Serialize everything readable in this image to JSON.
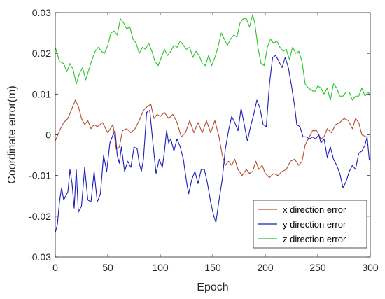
{
  "chart_data": {
    "type": "line",
    "xlabel": "Epoch",
    "ylabel": "Coordinate error(m)",
    "xlim": [
      0,
      300
    ],
    "ylim": [
      -0.03,
      0.03
    ],
    "xticks": [
      0,
      50,
      100,
      150,
      200,
      250,
      300
    ],
    "yticks": [
      -0.03,
      -0.02,
      -0.01,
      0,
      0.01,
      0.02,
      0.03
    ],
    "xtick_labels": [
      "0",
      "50",
      "100",
      "150",
      "200",
      "250",
      "300"
    ],
    "ytick_labels": [
      "-0.03",
      "-0.02",
      "-0.01",
      "0",
      "0.01",
      "0.02",
      "0.03"
    ],
    "grid": false,
    "legend_position": "bottom-right",
    "series": [
      {
        "name": "x direction error",
        "color": "#b34b2e",
        "points": [
          [
            0,
            -0.0015
          ],
          [
            4,
            0.001
          ],
          [
            8,
            0.003
          ],
          [
            12,
            0.004
          ],
          [
            16,
            0.0065
          ],
          [
            19,
            0.0085
          ],
          [
            22,
            0.007
          ],
          [
            25,
            0.004
          ],
          [
            28,
            0.0025
          ],
          [
            31,
            0.0035
          ],
          [
            34,
            0.0015
          ],
          [
            37,
            0.0025
          ],
          [
            40,
            0.002
          ],
          [
            45,
            0.003
          ],
          [
            50,
            0.0005
          ],
          [
            55,
            0.0025
          ],
          [
            58,
            -0.0035
          ],
          [
            61,
            -0.003
          ],
          [
            64,
            0.001
          ],
          [
            68,
            0.0015
          ],
          [
            72,
            0.0005
          ],
          [
            76,
            0.0015
          ],
          [
            80,
            0.0035
          ],
          [
            84,
            0.006
          ],
          [
            88,
            0.007
          ],
          [
            91,
            0.0075
          ],
          [
            94,
            0.004
          ],
          [
            97,
            0.005
          ],
          [
            100,
            0.0045
          ],
          [
            104,
            0.0055
          ],
          [
            108,
            0.004
          ],
          [
            112,
            0.005
          ],
          [
            116,
            0.003
          ],
          [
            120,
            -0.0005
          ],
          [
            124,
            0.0005
          ],
          [
            128,
            0.0035
          ],
          [
            132,
            0.0005
          ],
          [
            136,
            0.003
          ],
          [
            140,
            0.0005
          ],
          [
            144,
            0.0035
          ],
          [
            148,
            0.0005
          ],
          [
            152,
            0.0035
          ],
          [
            156,
            -0.0005
          ],
          [
            159,
            -0.005
          ],
          [
            162,
            -0.0075
          ],
          [
            165,
            -0.0065
          ],
          [
            168,
            -0.0075
          ],
          [
            171,
            -0.006
          ],
          [
            174,
            -0.0085
          ],
          [
            178,
            -0.01
          ],
          [
            182,
            -0.0085
          ],
          [
            185,
            -0.0095
          ],
          [
            188,
            -0.009
          ],
          [
            191,
            -0.0065
          ],
          [
            194,
            -0.0085
          ],
          [
            197,
            -0.0075
          ],
          [
            200,
            -0.0095
          ],
          [
            204,
            -0.0105
          ],
          [
            208,
            -0.0095
          ],
          [
            212,
            -0.01
          ],
          [
            216,
            -0.009
          ],
          [
            220,
            -0.0085
          ],
          [
            224,
            -0.0065
          ],
          [
            228,
            -0.006
          ],
          [
            232,
            -0.0075
          ],
          [
            235,
            -0.0065
          ],
          [
            238,
            -0.0025
          ],
          [
            241,
            -0.001
          ],
          [
            245,
            0.001
          ],
          [
            249,
            0.001
          ],
          [
            253,
            -0.001
          ],
          [
            256,
            -0.0005
          ],
          [
            259,
            0.0015
          ],
          [
            263,
            0.0005
          ],
          [
            267,
            0.0025
          ],
          [
            271,
            0.003
          ],
          [
            275,
            0.004
          ],
          [
            279,
            0.0035
          ],
          [
            283,
            0.0015
          ],
          [
            286,
            0.004
          ],
          [
            289,
            0.003
          ],
          [
            292,
            0.0
          ],
          [
            296,
            -0.0005
          ],
          [
            300,
            -0.0005
          ]
        ]
      },
      {
        "name": "y direction error",
        "color": "#1c1cba",
        "points": [
          [
            0,
            -0.024
          ],
          [
            2,
            -0.022
          ],
          [
            4,
            -0.0165
          ],
          [
            6,
            -0.013
          ],
          [
            8,
            -0.016
          ],
          [
            10,
            -0.015
          ],
          [
            12,
            -0.014
          ],
          [
            14,
            -0.0085
          ],
          [
            16,
            -0.012
          ],
          [
            18,
            -0.018
          ],
          [
            20,
            -0.0085
          ],
          [
            22,
            -0.019
          ],
          [
            25,
            -0.0175
          ],
          [
            28,
            -0.008
          ],
          [
            31,
            -0.016
          ],
          [
            34,
            -0.0165
          ],
          [
            37,
            -0.009
          ],
          [
            40,
            -0.0165
          ],
          [
            43,
            -0.0145
          ],
          [
            46,
            -0.005
          ],
          [
            49,
            -0.009
          ],
          [
            52,
            -0.002
          ],
          [
            55,
            0.0
          ],
          [
            57,
            0.001
          ],
          [
            59,
            -0.005
          ],
          [
            61,
            -0.007
          ],
          [
            63,
            -0.003
          ],
          [
            66,
            -0.009
          ],
          [
            69,
            -0.0065
          ],
          [
            72,
            -0.008
          ],
          [
            75,
            -0.003
          ],
          [
            78,
            -0.0035
          ],
          [
            80,
            -0.007
          ],
          [
            82,
            -0.009
          ],
          [
            84,
            -0.006
          ],
          [
            87,
            0.0055
          ],
          [
            90,
            0.006
          ],
          [
            93,
            -0.002
          ],
          [
            96,
            -0.0095
          ],
          [
            99,
            -0.006
          ],
          [
            102,
            -0.008
          ],
          [
            104,
            -0.004
          ],
          [
            106,
            0.001
          ],
          [
            108,
            -0.002
          ],
          [
            110,
            -0.001
          ],
          [
            113,
            -0.004
          ],
          [
            116,
            -0.001
          ],
          [
            119,
            -0.003
          ],
          [
            122,
            -0.006
          ],
          [
            125,
            -0.0115
          ],
          [
            127,
            -0.0145
          ],
          [
            130,
            -0.011
          ],
          [
            133,
            -0.009
          ],
          [
            136,
            -0.012
          ],
          [
            139,
            -0.0085
          ],
          [
            142,
            -0.0085
          ],
          [
            145,
            -0.012
          ],
          [
            148,
            -0.0165
          ],
          [
            151,
            -0.02
          ],
          [
            153,
            -0.0215
          ],
          [
            156,
            -0.016
          ],
          [
            159,
            -0.011
          ],
          [
            162,
            -0.0035
          ],
          [
            165,
            0.001
          ],
          [
            168,
            0.0045
          ],
          [
            171,
            0.003
          ],
          [
            174,
            0.001
          ],
          [
            177,
            0.0065
          ],
          [
            180,
            0.0025
          ],
          [
            183,
            -0.0015
          ],
          [
            186,
            0.002
          ],
          [
            189,
            0.005
          ],
          [
            192,
            0.0085
          ],
          [
            195,
            0.0065
          ],
          [
            198,
            0.0025
          ],
          [
            201,
            0.002
          ],
          [
            204,
            0.0125
          ],
          [
            207,
            0.019
          ],
          [
            210,
            0.0195
          ],
          [
            213,
            0.018
          ],
          [
            216,
            0.0165
          ],
          [
            219,
            0.019
          ],
          [
            222,
            0.0165
          ],
          [
            225,
            0.012
          ],
          [
            228,
            0.007
          ],
          [
            230,
            0.0025
          ],
          [
            233,
            0.002
          ],
          [
            236,
            -0.0005
          ],
          [
            239,
            -0.0005
          ],
          [
            242,
            -0.001
          ],
          [
            245,
            -0.0005
          ],
          [
            248,
            -0.001
          ],
          [
            251,
            -0.0
          ],
          [
            253,
            -0.002
          ],
          [
            256,
            -0.001
          ],
          [
            259,
            -0.0055
          ],
          [
            262,
            -0.003
          ],
          [
            265,
            -0.006
          ],
          [
            268,
            -0.0075
          ],
          [
            271,
            -0.0095
          ],
          [
            274,
            -0.013
          ],
          [
            277,
            -0.0115
          ],
          [
            280,
            -0.009
          ],
          [
            283,
            -0.0075
          ],
          [
            286,
            -0.0085
          ],
          [
            289,
            -0.0045
          ],
          [
            292,
            -0.004
          ],
          [
            295,
            -0.0025
          ],
          [
            297,
            -0.0005
          ],
          [
            299,
            -0.006
          ],
          [
            300,
            -0.0065
          ]
        ]
      },
      {
        "name": "z direction error",
        "color": "#27c42a",
        "points": [
          [
            0,
            0.0215
          ],
          [
            4,
            0.018
          ],
          [
            8,
            0.0175
          ],
          [
            11,
            0.0155
          ],
          [
            14,
            0.0175
          ],
          [
            17,
            0.016
          ],
          [
            20,
            0.0125
          ],
          [
            23,
            0.015
          ],
          [
            26,
            0.0165
          ],
          [
            29,
            0.0135
          ],
          [
            32,
            0.016
          ],
          [
            35,
            0.0185
          ],
          [
            38,
            0.0205
          ],
          [
            41,
            0.0215
          ],
          [
            44,
            0.0205
          ],
          [
            47,
            0.02
          ],
          [
            50,
            0.022
          ],
          [
            53,
            0.025
          ],
          [
            56,
            0.0255
          ],
          [
            59,
            0.0245
          ],
          [
            62,
            0.0285
          ],
          [
            65,
            0.0275
          ],
          [
            68,
            0.026
          ],
          [
            71,
            0.0265
          ],
          [
            74,
            0.0235
          ],
          [
            77,
            0.0225
          ],
          [
            80,
            0.02
          ],
          [
            83,
            0.0215
          ],
          [
            86,
            0.021
          ],
          [
            89,
            0.0225
          ],
          [
            92,
            0.0205
          ],
          [
            95,
            0.018
          ],
          [
            98,
            0.017
          ],
          [
            101,
            0.019
          ],
          [
            104,
            0.021
          ],
          [
            107,
            0.0195
          ],
          [
            110,
            0.0205
          ],
          [
            113,
            0.022
          ],
          [
            116,
            0.0215
          ],
          [
            119,
            0.023
          ],
          [
            122,
            0.022
          ],
          [
            125,
            0.021
          ],
          [
            128,
            0.0215
          ],
          [
            131,
            0.019
          ],
          [
            134,
            0.0205
          ],
          [
            137,
            0.0195
          ],
          [
            140,
            0.0175
          ],
          [
            143,
            0.017
          ],
          [
            146,
            0.0195
          ],
          [
            149,
            0.017
          ],
          [
            152,
            0.019
          ],
          [
            155,
            0.0215
          ],
          [
            158,
            0.025
          ],
          [
            161,
            0.0235
          ],
          [
            164,
            0.022
          ],
          [
            167,
            0.0235
          ],
          [
            170,
            0.0245
          ],
          [
            173,
            0.024
          ],
          [
            176,
            0.0275
          ],
          [
            179,
            0.0285
          ],
          [
            182,
            0.0285
          ],
          [
            185,
            0.0265
          ],
          [
            188,
            0.0295
          ],
          [
            190,
            0.0275
          ],
          [
            193,
            0.0215
          ],
          [
            196,
            0.0175
          ],
          [
            199,
            0.017
          ],
          [
            202,
            0.0215
          ],
          [
            205,
            0.0235
          ],
          [
            208,
            0.0225
          ],
          [
            211,
            0.023
          ],
          [
            214,
            0.0215
          ],
          [
            217,
            0.0205
          ],
          [
            220,
            0.021
          ],
          [
            223,
            0.0185
          ],
          [
            226,
            0.0215
          ],
          [
            229,
            0.02
          ],
          [
            232,
            0.0205
          ],
          [
            235,
            0.018
          ],
          [
            238,
            0.0125
          ],
          [
            241,
            0.0115
          ],
          [
            244,
            0.011
          ],
          [
            247,
            0.0105
          ],
          [
            250,
            0.012
          ],
          [
            253,
            0.0115
          ],
          [
            256,
            0.01
          ],
          [
            259,
            0.0115
          ],
          [
            262,
            0.0085
          ],
          [
            265,
            0.0125
          ],
          [
            268,
            0.0115
          ],
          [
            271,
            0.0095
          ],
          [
            274,
            0.0095
          ],
          [
            277,
            0.0105
          ],
          [
            280,
            0.0105
          ],
          [
            283,
            0.0085
          ],
          [
            286,
            0.0095
          ],
          [
            289,
            0.0095
          ],
          [
            292,
            0.0115
          ],
          [
            295,
            0.0095
          ],
          [
            298,
            0.0105
          ],
          [
            300,
            0.0095
          ]
        ]
      }
    ]
  }
}
